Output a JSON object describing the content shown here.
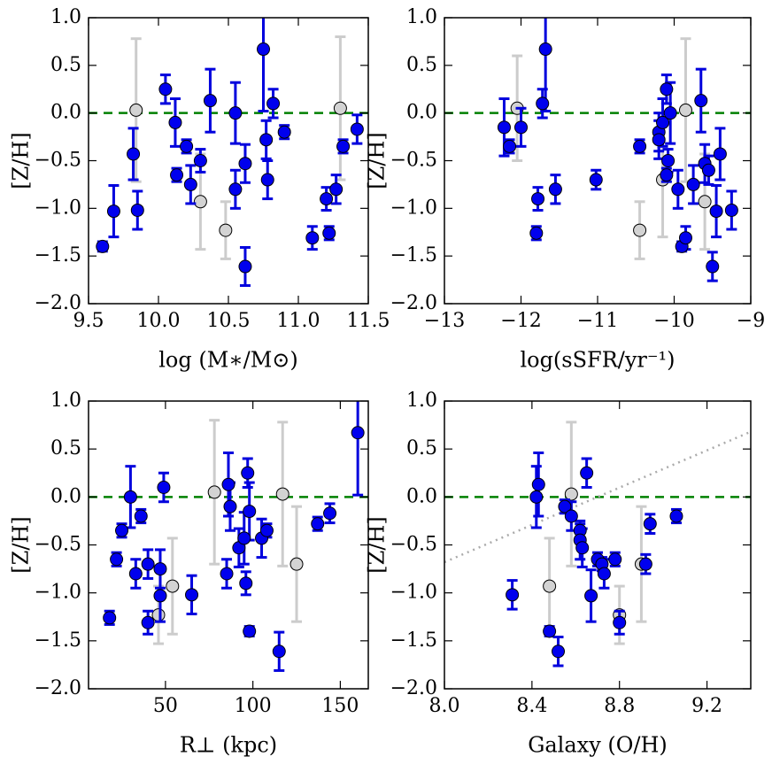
{
  "chart_data": [
    {
      "type": "scatter",
      "xlabel": "log (M∗/M⊙)",
      "ylabel": "[Z/H]",
      "xlim": [
        9.5,
        11.5
      ],
      "ylim": [
        -2,
        1
      ],
      "xticks": [
        9.5,
        {
          "value": 10,
          "label": "10.0"
        },
        10.5,
        {
          "value": 11,
          "label": "11.0"
        },
        11.5
      ],
      "yticks": [
        {
          "value": -2,
          "label": "−2.0"
        },
        {
          "value": -1.5,
          "label": "−1.5"
        },
        {
          "value": -1,
          "label": "−1.0"
        },
        {
          "value": -0.5,
          "label": "−0.5"
        },
        {
          "value": 0,
          "label": "0.0"
        },
        {
          "value": 0.5,
          "label": "0.5"
        },
        {
          "value": 1,
          "label": "1.0"
        }
      ],
      "hline": 0,
      "series": [
        {
          "color": "#cccccc",
          "marker_color": "#d3d3d3",
          "x": [
            9.84,
            10.3,
            10.48,
            11.3
          ],
          "values": [
            0.03,
            -0.93,
            -1.23,
            0.05
          ],
          "errors": [
            0.75,
            0.5,
            0.3,
            0.75
          ]
        },
        {
          "color": "#0000dd",
          "marker_color": "#0000ee",
          "x": [
            9.6,
            9.68,
            9.82,
            9.85,
            10.05,
            10.12,
            10.13,
            10.2,
            10.23,
            10.3,
            10.37,
            10.55,
            10.55,
            10.62,
            10.62,
            10.75,
            10.77,
            10.78,
            10.82,
            10.9,
            11.1,
            11.2,
            11.22,
            11.27,
            11.32,
            11.42
          ],
          "values": [
            -1.4,
            -1.03,
            -0.43,
            -1.02,
            0.25,
            -0.1,
            -0.65,
            -0.35,
            -0.75,
            -0.5,
            0.13,
            0.0,
            -0.8,
            -0.53,
            -1.61,
            0.67,
            -0.28,
            -0.7,
            0.1,
            -0.2,
            -1.31,
            -0.9,
            -1.26,
            -0.8,
            -0.35,
            -0.17
          ],
          "errors": [
            0.05,
            0.27,
            0.27,
            0.2,
            0.15,
            0.25,
            0.07,
            0.07,
            0.2,
            0.12,
            0.33,
            0.32,
            0.2,
            0.2,
            0.2,
            0.65,
            0.2,
            0.2,
            0.15,
            0.07,
            0.12,
            0.12,
            0.07,
            0.15,
            0.07,
            0.15
          ]
        }
      ]
    },
    {
      "type": "scatter",
      "xlabel": "log(sSFR/yr⁻¹)",
      "ylabel": "[Z/H]",
      "xlim": [
        -13,
        -9
      ],
      "ylim": [
        -2,
        1
      ],
      "xticks": [
        {
          "value": -13,
          "label": "−13"
        },
        {
          "value": -12,
          "label": "−12"
        },
        {
          "value": -11,
          "label": "−11"
        },
        {
          "value": -10,
          "label": "−10"
        },
        {
          "value": -9,
          "label": "−9"
        }
      ],
      "yticks": [
        {
          "value": -2,
          "label": "−2.0"
        },
        {
          "value": -1.5,
          "label": "−1.5"
        },
        {
          "value": -1,
          "label": "−1.0"
        },
        {
          "value": -0.5,
          "label": "−0.5"
        },
        {
          "value": 0,
          "label": "0.0"
        },
        {
          "value": 0.5,
          "label": "0.5"
        },
        {
          "value": 1,
          "label": "1.0"
        }
      ],
      "hline": 0,
      "series": [
        {
          "color": "#cccccc",
          "marker_color": "#d3d3d3",
          "x": [
            -12.05,
            -10.45,
            -10.15,
            -9.85,
            -9.6
          ],
          "values": [
            0.05,
            -1.23,
            -0.7,
            0.03,
            -0.93
          ],
          "errors": [
            0.55,
            0.3,
            0.6,
            0.75,
            0.5
          ]
        },
        {
          "color": "#0000dd",
          "marker_color": "#0000ee",
          "x": [
            -12.22,
            -12.15,
            -12.0,
            -11.78,
            -11.8,
            -11.72,
            -11.68,
            -11.55,
            -11.02,
            -10.45,
            -10.2,
            -10.2,
            -10.15,
            -10.1,
            -10.08,
            -10.05,
            -10.1,
            -9.95,
            -9.9,
            -9.85,
            -9.75,
            -9.65,
            -9.6,
            -9.55,
            -9.5,
            -9.45,
            -9.4,
            -9.25
          ],
          "values": [
            -0.15,
            -0.35,
            -0.15,
            -0.9,
            -1.26,
            0.1,
            0.67,
            -0.8,
            -0.7,
            -0.35,
            -0.2,
            -0.28,
            -0.1,
            0.25,
            -0.5,
            0.0,
            -0.65,
            -0.8,
            -1.4,
            -1.31,
            -0.75,
            0.13,
            -0.53,
            -0.6,
            -1.61,
            -1.03,
            -0.43,
            -1.02
          ],
          "errors": [
            0.3,
            0.07,
            0.2,
            0.12,
            0.07,
            0.15,
            0.65,
            0.15,
            0.1,
            0.07,
            0.2,
            0.2,
            0.25,
            0.15,
            0.12,
            0.32,
            0.07,
            0.2,
            0.05,
            0.12,
            0.2,
            0.33,
            0.2,
            0.15,
            0.15,
            0.27,
            0.27,
            0.2
          ]
        }
      ]
    },
    {
      "type": "scatter",
      "xlabel": "R⊥ (kpc)",
      "ylabel": "[Z/H]",
      "xlim": [
        6,
        166
      ],
      "ylim": [
        -2,
        1
      ],
      "xticks": [
        50,
        100,
        150
      ],
      "yticks": [
        {
          "value": -2,
          "label": "−2.0"
        },
        {
          "value": -1.5,
          "label": "−1.5"
        },
        {
          "value": -1,
          "label": "−1.0"
        },
        {
          "value": -0.5,
          "label": "−0.5"
        },
        {
          "value": 0,
          "label": "0.0"
        },
        {
          "value": 0.5,
          "label": "0.5"
        },
        {
          "value": 1,
          "label": "1.0"
        }
      ],
      "hline": 0,
      "series": [
        {
          "color": "#cccccc",
          "marker_color": "#d3d3d3",
          "x": [
            46,
            54,
            78,
            117,
            125
          ],
          "values": [
            -1.23,
            -0.93,
            0.05,
            0.03,
            -0.7
          ],
          "errors": [
            0.3,
            0.5,
            0.75,
            0.75,
            0.6
          ]
        },
        {
          "color": "#0000dd",
          "marker_color": "#0000ee",
          "x": [
            18,
            22,
            25,
            30,
            33,
            36,
            40,
            40,
            47,
            47,
            49,
            65,
            85,
            86,
            87,
            92,
            95,
            96,
            97,
            98,
            98,
            105,
            108,
            115,
            137,
            144,
            160
          ],
          "values": [
            -1.26,
            -0.65,
            -0.35,
            0.0,
            -0.8,
            -0.2,
            -0.7,
            -1.31,
            -0.75,
            -1.03,
            0.1,
            -1.02,
            -0.8,
            0.13,
            -0.1,
            -0.53,
            -0.43,
            -0.9,
            0.25,
            -0.15,
            -1.4,
            -0.43,
            -0.35,
            -1.61,
            -0.28,
            -0.17,
            0.67
          ],
          "errors": [
            0.07,
            0.07,
            0.07,
            0.32,
            0.15,
            0.07,
            0.15,
            0.12,
            0.2,
            0.27,
            0.15,
            0.2,
            0.15,
            0.33,
            0.25,
            0.2,
            0.27,
            0.12,
            0.15,
            0.3,
            0.05,
            0.2,
            0.07,
            0.2,
            0.07,
            0.1,
            0.65
          ]
        }
      ]
    },
    {
      "type": "scatter",
      "xlabel": "Galaxy (O/H)",
      "ylabel": "[Z/H]",
      "xlim": [
        8.0,
        9.4
      ],
      "ylim": [
        -2,
        1
      ],
      "xticks": [
        {
          "value": 8,
          "label": "8.0"
        },
        8.4,
        8.8,
        9.2
      ],
      "yticks": [
        {
          "value": -2,
          "label": "−2.0"
        },
        {
          "value": -1.5,
          "label": "−1.5"
        },
        {
          "value": -1,
          "label": "−1.0"
        },
        {
          "value": -0.5,
          "label": "−0.5"
        },
        {
          "value": 0,
          "label": "0.0"
        },
        {
          "value": 0.5,
          "label": "0.5"
        },
        {
          "value": 1,
          "label": "1.0"
        }
      ],
      "hline": 0,
      "trend_line": {
        "x": [
          8.0,
          9.4
        ],
        "values": [
          -0.68,
          0.68
        ]
      },
      "series": [
        {
          "color": "#cccccc",
          "marker_color": "#d3d3d3",
          "x": [
            8.48,
            8.58,
            8.8,
            8.9
          ],
          "values": [
            -0.93,
            0.03,
            -1.23,
            -0.7
          ],
          "errors": [
            0.5,
            0.75,
            0.3,
            0.6
          ]
        },
        {
          "color": "#0000dd",
          "marker_color": "#0000ee",
          "x": [
            8.31,
            8.42,
            8.43,
            8.48,
            8.52,
            8.55,
            8.58,
            8.62,
            8.62,
            8.63,
            8.65,
            8.67,
            8.7,
            8.72,
            8.73,
            8.78,
            8.8,
            8.92,
            8.94,
            9.06
          ],
          "values": [
            -1.02,
            0.0,
            0.13,
            -1.4,
            -1.61,
            -0.1,
            -0.2,
            -0.35,
            -0.45,
            -0.53,
            0.25,
            -1.03,
            -0.65,
            -0.7,
            -0.8,
            -0.65,
            -1.31,
            -0.7,
            -0.28,
            -0.2
          ],
          "errors": [
            0.15,
            0.32,
            0.33,
            0.05,
            0.15,
            0.07,
            0.15,
            0.07,
            0.2,
            0.2,
            0.15,
            0.27,
            0.07,
            0.07,
            0.15,
            0.07,
            0.12,
            0.1,
            0.1,
            0.07
          ]
        }
      ]
    }
  ]
}
